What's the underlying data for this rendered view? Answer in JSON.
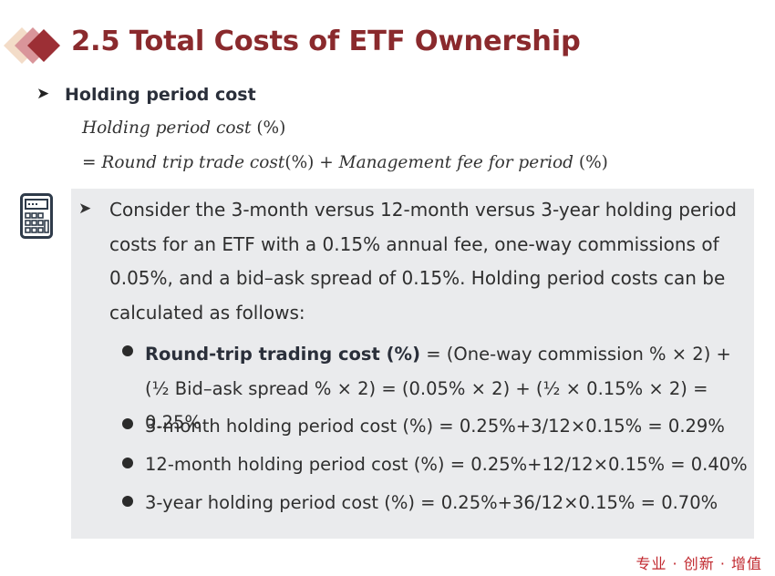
{
  "slide": {
    "title": "2.5 Total Costs of ETF Ownership",
    "bullet_heading": "Holding period cost",
    "formula_line1": {
      "term": "Holding period cost",
      "unit": "(%)"
    },
    "formula_line2": {
      "eq": "=",
      "term1": "Round trip trade cost",
      "unit1": "(%)",
      "plus": "+",
      "term2": "Management fee for period",
      "unit2": "(%)"
    },
    "example": {
      "paragraph": "Consider the 3-month versus 12-month versus 3-year holding period costs for an ETF with a 0.15% annual fee, one-way commissions of 0.05%, and a bid–ask spread of 0.15%. Holding period costs can be calculated as follows:",
      "items": [
        {
          "bold": "Round-trip trading cost (%)",
          "text": " = (One-way commission % × 2) + (½ Bid–ask spread % × 2) = (0.05% × 2) + (½ × 0.15% × 2) = 0.25%"
        },
        {
          "bold": "",
          "text": "3-month holding period cost (%) = 0.25%+3/12×0.15% = 0.29%"
        },
        {
          "bold": "",
          "text": "12-month holding period cost (%) = 0.25%+12/12×0.15% = 0.40%"
        },
        {
          "bold": "",
          "text": "3-year holding period cost (%) = 0.25%+36/12×0.15% = 0.70%"
        }
      ]
    },
    "footer": "专业 · 创新 · 增值"
  },
  "colors": {
    "title": "#8a2a2d",
    "panel": "#eaebed",
    "footer": "#c0272d",
    "icon": "#2f3b4a"
  },
  "icons": {
    "logo": "diamonds-logo",
    "calculator": "calculator-icon",
    "arrow": "arrowhead-bullet"
  }
}
